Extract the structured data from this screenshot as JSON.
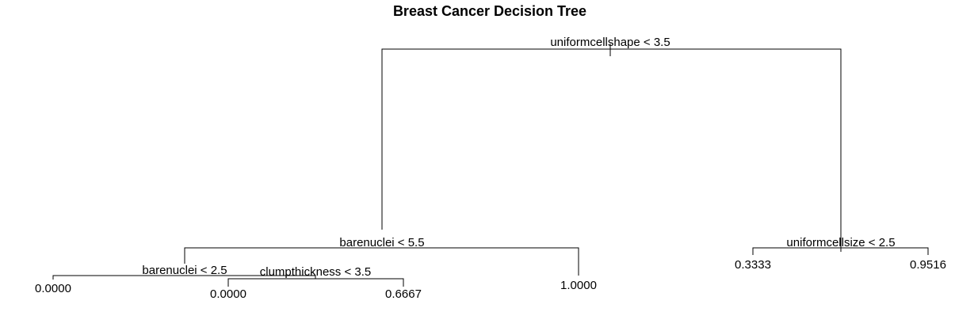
{
  "title": "Breast Cancer Decision Tree",
  "splits": {
    "root": "uniformcellshape < 3.5",
    "left": "barenuclei < 5.5",
    "left_left": "barenuclei < 2.5",
    "left_left_right": "clumpthickness < 3.5",
    "right": "uniformcellsize < 2.5"
  },
  "leaves": {
    "left_left_left": "0.0000",
    "left_left_right_left": "0.0000",
    "left_left_right_right": "0.6667",
    "left_right": "1.0000",
    "right_left": "0.3333",
    "right_right": "0.9516"
  }
}
